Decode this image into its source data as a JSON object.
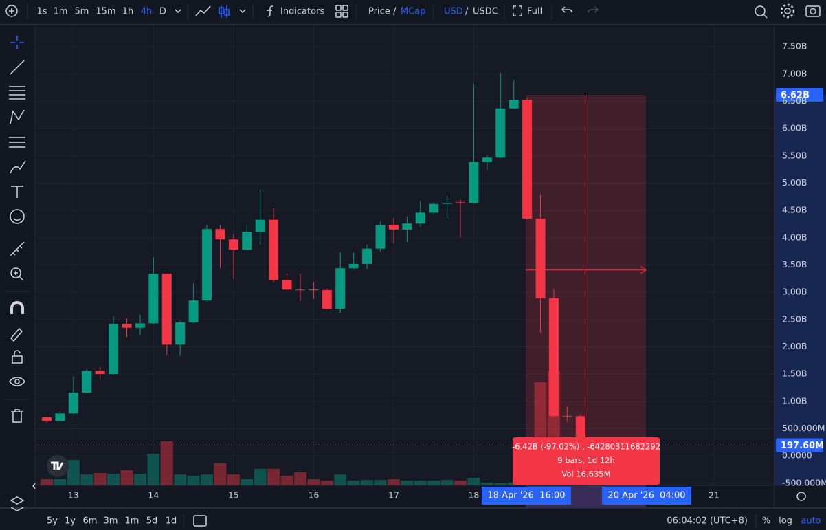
{
  "top_toolbar": {
    "intervals": [
      "1s",
      "1m",
      "5m",
      "15m",
      "1h",
      "4h",
      "D"
    ],
    "indicators": "Indicators",
    "price": "Price",
    "separator": "/",
    "mcap": "MCap",
    "currency": "USD",
    "quote": "USDC",
    "fullscreen": "Full"
  },
  "bottom_toolbar": {
    "ranges": [
      "5y",
      "1y",
      "6m",
      "3m",
      "1m",
      "5d",
      "1d"
    ],
    "clock": "06:04:02 (UTC+8)",
    "percent": "%",
    "log": "log",
    "auto": "auto"
  },
  "chart_data": {
    "type": "candlestick",
    "categories": [
      null,
      null,
      "13",
      null,
      null,
      null,
      null,
      null,
      "14",
      null,
      null,
      null,
      null,
      null,
      "15",
      null,
      null,
      null,
      null,
      null,
      "16",
      null,
      null,
      null,
      null,
      null,
      "17",
      null,
      null,
      null,
      null,
      null,
      "18",
      null,
      null,
      null,
      null,
      null,
      null,
      null,
      null,
      null,
      null,
      null,
      null,
      null,
      null,
      null,
      null,
      null,
      "21",
      null,
      null,
      null
    ],
    "open": [
      0.71,
      0.64,
      0.78,
      1.16,
      1.56,
      1.5,
      2.42,
      2.35,
      2.43,
      3.34,
      2.04,
      2.45,
      2.85,
      4.16,
      3.97,
      3.78,
      4.11,
      4.33,
      3.22,
      3.05,
      3.05,
      3.04,
      2.7,
      3.44,
      3.52,
      3.8,
      4.23,
      4.15,
      4.26,
      4.46,
      4.62,
      4.65,
      4.64,
      5.39,
      5.47,
      6.37,
      6.53,
      4.35,
      2.89,
      0.73,
      0.73,
      null,
      null,
      null,
      null,
      null,
      null,
      null,
      null,
      null,
      null,
      null,
      null,
      null
    ],
    "high": [
      0.72,
      0.81,
      1.45,
      1.59,
      1.63,
      2.56,
      2.52,
      2.59,
      3.64,
      3.35,
      2.48,
      3.17,
      4.23,
      4.23,
      4.07,
      4.23,
      4.89,
      4.54,
      3.34,
      3.34,
      3.19,
      3.06,
      3.73,
      3.73,
      3.87,
      4.29,
      4.36,
      4.39,
      4.68,
      4.65,
      4.77,
      4.7,
      6.82,
      5.51,
      7.02,
      6.89,
      6.56,
      4.79,
      3.06,
      0.91,
      0.76,
      null,
      null,
      null,
      null,
      null,
      null,
      null,
      null,
      null,
      null,
      null,
      null,
      null
    ],
    "low": [
      0.61,
      0.64,
      0.77,
      1.15,
      1.4,
      1.49,
      2.18,
      2.21,
      2.41,
      1.85,
      1.84,
      2.43,
      2.83,
      3.44,
      3.24,
      3.77,
      3.88,
      3.19,
      3.04,
      2.84,
      2.88,
      2.69,
      2.62,
      3.41,
      3.42,
      3.75,
      3.9,
      3.92,
      4.2,
      4.43,
      4.35,
      4.01,
      4.62,
      5.23,
      5.46,
      6.37,
      4.34,
      2.26,
      0.71,
      0.63,
      0.18,
      null,
      null,
      null,
      null,
      null,
      null,
      null,
      null,
      null,
      null,
      null,
      null,
      null
    ],
    "close": [
      0.64,
      0.78,
      1.16,
      1.56,
      1.5,
      2.42,
      2.35,
      2.43,
      3.34,
      2.04,
      2.45,
      2.85,
      4.16,
      3.97,
      3.78,
      4.11,
      4.33,
      3.22,
      3.05,
      3.04,
      3.04,
      2.7,
      3.44,
      3.52,
      3.8,
      4.23,
      4.15,
      4.26,
      4.46,
      4.62,
      4.64,
      4.64,
      5.39,
      5.47,
      6.37,
      6.53,
      4.35,
      2.89,
      0.73,
      0.72,
      0.1976,
      null,
      null,
      null,
      null,
      null,
      null,
      null,
      null,
      null,
      null,
      null,
      null,
      null
    ],
    "volume": [
      0.35,
      0.35,
      1.44,
      0.62,
      0.7,
      0.66,
      0.86,
      0.66,
      1.79,
      2.5,
      0.62,
      0.55,
      0.62,
      1.25,
      0.62,
      0.35,
      0.94,
      0.94,
      0.55,
      0.74,
      0.35,
      0.27,
      0.62,
      0.27,
      0.31,
      0.31,
      0.35,
      0.27,
      0.27,
      0.27,
      0.31,
      0.27,
      0.43,
      0.16,
      0.12,
      0.16,
      0.31,
      5.85,
      6.47,
      1.56,
      1.17,
      null,
      null,
      null,
      null,
      null,
      null,
      null,
      null,
      null,
      null,
      null,
      null,
      null
    ],
    "up_color": "#089981",
    "down_color": "#f23645",
    "ylim": [
      -0.54,
      7.88
    ],
    "yticks": [
      {
        "value": -0.5,
        "label": "-500.000M"
      },
      {
        "value": 0,
        "label": "0.0000"
      },
      {
        "value": 0.5,
        "label": "500.000M"
      },
      {
        "value": 1,
        "label": "1.00B"
      },
      {
        "value": 1.5,
        "label": "1.50B"
      },
      {
        "value": 2,
        "label": "2.00B"
      },
      {
        "value": 2.5,
        "label": "2.50B"
      },
      {
        "value": 3,
        "label": "3.00B"
      },
      {
        "value": 3.5,
        "label": "3.50B"
      },
      {
        "value": 4,
        "label": "4.00B"
      },
      {
        "value": 4.5,
        "label": "4.50B"
      },
      {
        "value": 5,
        "label": "5.00B"
      },
      {
        "value": 5.5,
        "label": "5.50B"
      },
      {
        "value": 6,
        "label": "6.00B"
      },
      {
        "value": 6.5,
        "label": "6.50B"
      },
      {
        "value": 7,
        "label": "7.00B"
      },
      {
        "value": 7.5,
        "label": "7.50B"
      }
    ],
    "grid": true,
    "price_labels": [
      {
        "value": 6.62,
        "label": "6.62B"
      },
      {
        "value": 0.1976,
        "label": "197.60M"
      }
    ],
    "range_tool": {
      "from_label": "18 Apr '26  16:00",
      "to_label": "20 Apr '26  04:00",
      "tooltip": [
        "-6.42B (-97.02%) , -64280311682292",
        "9 bars, 1d 12h",
        "Vol 16.635M"
      ]
    }
  }
}
